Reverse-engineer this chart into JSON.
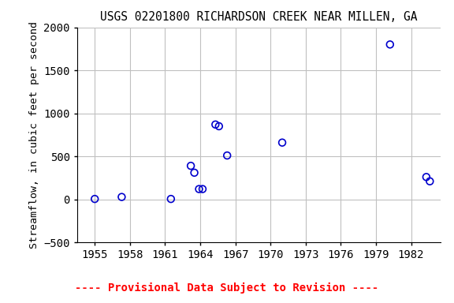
{
  "title": "USGS 02201800 RICHARDSON CREEK NEAR MILLEN, GA",
  "ylabel": "Streamflow, in cubic feet per second",
  "footnote": "---- Provisional Data Subject to Revision ----",
  "xlim": [
    1953.5,
    1984.5
  ],
  "ylim": [
    -500,
    2000
  ],
  "xticks": [
    1955,
    1958,
    1961,
    1964,
    1967,
    1970,
    1973,
    1976,
    1979,
    1982
  ],
  "yticks": [
    -500,
    0,
    500,
    1000,
    1500,
    2000
  ],
  "background_color": "#ffffff",
  "grid_color": "#c0c0c0",
  "marker_color": "#0000cc",
  "data_x": [
    1955.0,
    1957.3,
    1961.5,
    1963.2,
    1963.5,
    1963.9,
    1964.2,
    1965.3,
    1965.6,
    1966.3,
    1971.0,
    1980.2,
    1983.3,
    1983.6
  ],
  "data_y": [
    5,
    28,
    5,
    390,
    310,
    120,
    120,
    870,
    850,
    510,
    660,
    1800,
    260,
    210
  ],
  "title_fontsize": 10.5,
  "label_fontsize": 9.5,
  "footnote_fontsize": 10,
  "tick_fontsize": 10
}
